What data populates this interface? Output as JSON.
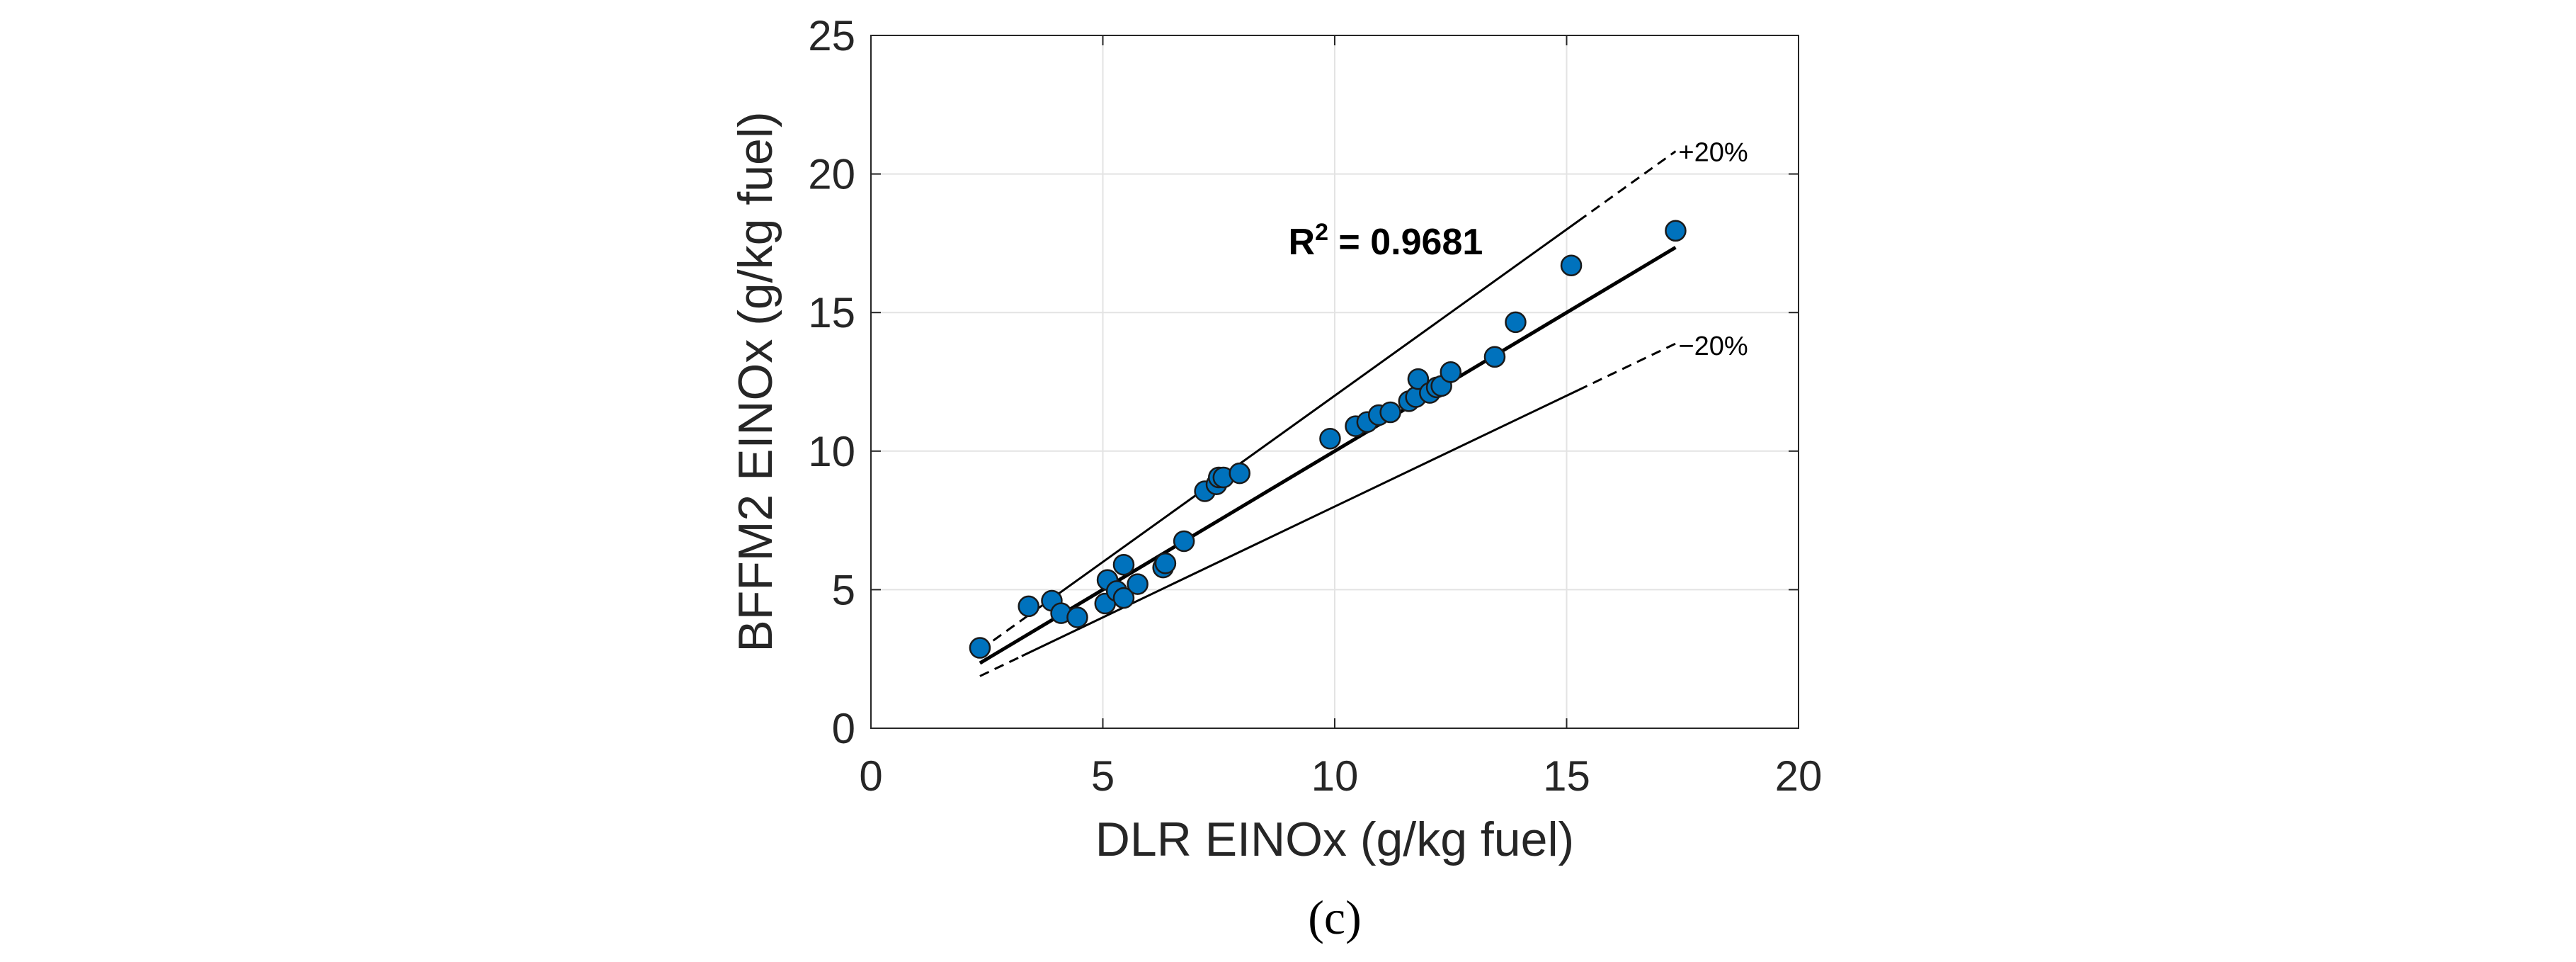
{
  "chart_data": {
    "type": "scatter",
    "title": "",
    "xlabel": "DLR EINOx (g/kg fuel)",
    "ylabel": "BFFM2 EINOx (g/kg fuel)",
    "xlim": [
      0,
      20
    ],
    "ylim": [
      0,
      25
    ],
    "x_ticks": [
      0,
      5,
      10,
      15,
      20
    ],
    "x_tick_labels": [
      "0",
      "5",
      "10",
      "15",
      "20"
    ],
    "y_ticks": [
      0,
      5,
      10,
      15,
      20,
      25
    ],
    "y_tick_labels": [
      "0",
      "5",
      "10",
      "15",
      "20",
      "25"
    ],
    "grid": true,
    "marker_color": "#0072BD",
    "marker_edge_color": "#1a1a1a",
    "series": [
      {
        "name": "data",
        "x": [
          2.35,
          3.4,
          3.9,
          4.1,
          4.45,
          5.05,
          5.1,
          5.3,
          5.45,
          5.45,
          5.75,
          6.3,
          6.35,
          6.75,
          7.2,
          7.45,
          7.5,
          7.6,
          7.95,
          9.9,
          10.45,
          10.7,
          10.95,
          11.2,
          11.6,
          11.75,
          11.8,
          12.05,
          12.2,
          12.3,
          12.5,
          13.45,
          13.9,
          15.1,
          17.35
        ],
        "y": [
          2.9,
          4.4,
          4.6,
          4.15,
          4.0,
          4.5,
          5.35,
          4.95,
          4.7,
          5.9,
          5.2,
          5.8,
          5.95,
          6.75,
          8.55,
          8.8,
          9.05,
          9.05,
          9.2,
          10.45,
          10.9,
          11.05,
          11.3,
          11.4,
          11.8,
          11.95,
          12.6,
          12.1,
          12.3,
          12.35,
          12.85,
          13.4,
          14.65,
          16.7,
          17.95
        ]
      }
    ],
    "fit_line": {
      "x": [
        2.35,
        17.35
      ],
      "y": [
        2.35,
        17.35
      ]
    },
    "upper_band": {
      "label": "+20%",
      "factor": 1.2,
      "x_range": [
        2.35,
        17.35
      ]
    },
    "lower_band": {
      "label": "−20%",
      "factor": 0.8,
      "x_range": [
        2.35,
        17.35
      ]
    },
    "annotation": {
      "text_base": "R",
      "text_sup": "2",
      "text_rest": " = 0.9681",
      "x": 9.0,
      "y": 17.1
    },
    "panel_label": "(c)"
  }
}
